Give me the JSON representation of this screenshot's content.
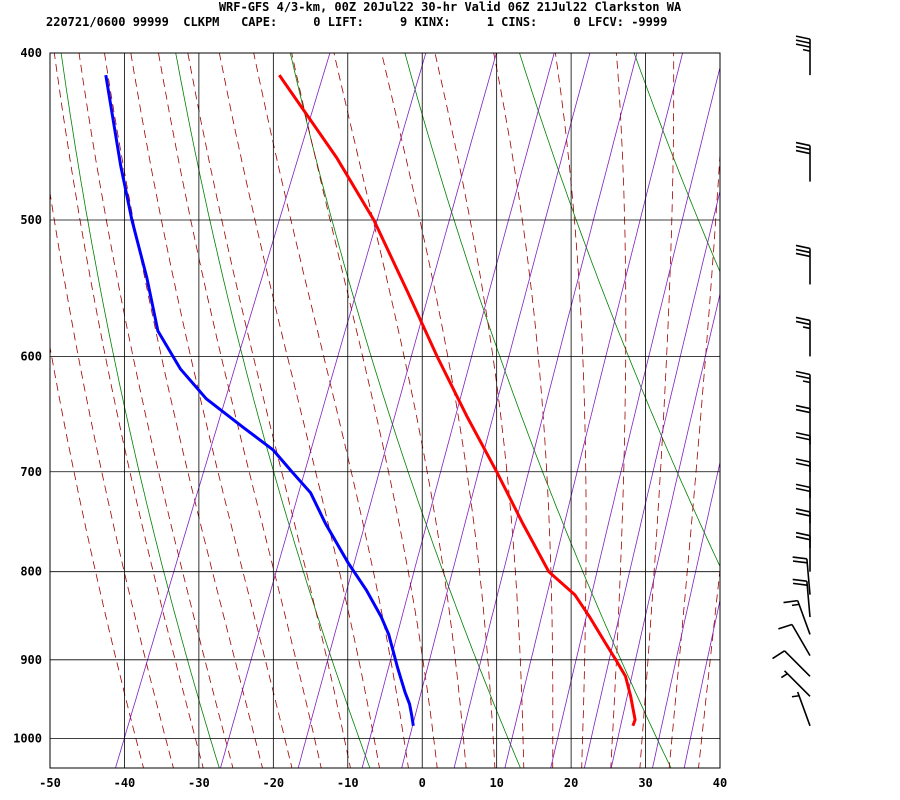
{
  "header": {
    "title": "WRF-GFS 4/3-km, 00Z 20Jul22 30-hr Valid 06Z 21Jul22 Clarkston WA",
    "stats": "220721/0600 99999  CLKPM   CAPE:     0 LIFT:     9 KINX:     1 CINS:     0 LFCV: -9999"
  },
  "chart_data": {
    "type": "line",
    "subtype": "skew-t log-p sounding",
    "title": "WRF-GFS 4/3-km, 00Z 20Jul22 30-hr Valid 06Z 21Jul22 Clarkston WA",
    "xlabel": "",
    "ylabel": "",
    "x_ticks": [
      -50,
      -40,
      -30,
      -20,
      -10,
      0,
      10,
      20,
      30,
      40
    ],
    "y_ticks": [
      400,
      500,
      600,
      700,
      800,
      900,
      1000
    ],
    "xlim": [
      -50,
      40
    ],
    "ylim_pressure": [
      1040,
      400
    ],
    "y_scale": "log",
    "grid": true,
    "colors": {
      "temperature": "#ff0000",
      "dewpoint": "#0000ff",
      "dry_adiabat": "#008000",
      "moist_adiabat": "#a00000",
      "mixing_ratio": "#8020c0",
      "grid": "#000000"
    },
    "series": [
      {
        "label": "temperature",
        "points": [
          [
            28.3,
            983
          ],
          [
            28.6,
            975
          ],
          [
            28.3,
            960
          ],
          [
            28.0,
            945
          ],
          [
            27.3,
            920
          ],
          [
            26.0,
            900
          ],
          [
            24.6,
            880
          ],
          [
            22.5,
            850
          ],
          [
            20.5,
            825
          ],
          [
            17.0,
            800
          ],
          [
            13.5,
            750
          ],
          [
            10.0,
            700
          ],
          [
            6.0,
            650
          ],
          [
            2.0,
            600
          ],
          [
            -2.0,
            550
          ],
          [
            -6.5,
            500
          ],
          [
            -11.5,
            460
          ],
          [
            -19.2,
            412
          ]
        ]
      },
      {
        "label": "dewpoint",
        "points": [
          [
            -1.2,
            983
          ],
          [
            -1.4,
            970
          ],
          [
            -1.7,
            955
          ],
          [
            -2.3,
            940
          ],
          [
            -3.3,
            910
          ],
          [
            -4.5,
            870
          ],
          [
            -5.5,
            850
          ],
          [
            -7.5,
            820
          ],
          [
            -10.0,
            790
          ],
          [
            -13.0,
            750
          ],
          [
            -15.0,
            720
          ],
          [
            -17.5,
            700
          ],
          [
            -20.0,
            680
          ],
          [
            -24.0,
            660
          ],
          [
            -29.0,
            635
          ],
          [
            -32.5,
            610
          ],
          [
            -35.5,
            580
          ],
          [
            -37.0,
            540
          ],
          [
            -39.0,
            500
          ],
          [
            -40.5,
            465
          ],
          [
            -42.5,
            412
          ]
        ]
      }
    ],
    "wind_barbs": [
      {
        "pressure": 983,
        "direction_deg": 340,
        "speed_kt": 5
      },
      {
        "pressure": 945,
        "direction_deg": 315,
        "speed_kt": 5
      },
      {
        "pressure": 920,
        "direction_deg": 315,
        "speed_kt": 10
      },
      {
        "pressure": 895,
        "direction_deg": 330,
        "speed_kt": 10
      },
      {
        "pressure": 870,
        "direction_deg": 340,
        "speed_kt": 15
      },
      {
        "pressure": 850,
        "direction_deg": 355,
        "speed_kt": 20
      },
      {
        "pressure": 825,
        "direction_deg": 355,
        "speed_kt": 20
      },
      {
        "pressure": 800,
        "direction_deg": 360,
        "speed_kt": 20
      },
      {
        "pressure": 775,
        "direction_deg": 360,
        "speed_kt": 20
      },
      {
        "pressure": 750,
        "direction_deg": 360,
        "speed_kt": 20
      },
      {
        "pressure": 725,
        "direction_deg": 360,
        "speed_kt": 20
      },
      {
        "pressure": 700,
        "direction_deg": 360,
        "speed_kt": 20
      },
      {
        "pressure": 675,
        "direction_deg": 360,
        "speed_kt": 20
      },
      {
        "pressure": 645,
        "direction_deg": 360,
        "speed_kt": 25
      },
      {
        "pressure": 600,
        "direction_deg": 360,
        "speed_kt": 25
      },
      {
        "pressure": 545,
        "direction_deg": 360,
        "speed_kt": 30
      },
      {
        "pressure": 475,
        "direction_deg": 360,
        "speed_kt": 30
      },
      {
        "pressure": 412,
        "direction_deg": 360,
        "speed_kt": 35
      }
    ]
  }
}
